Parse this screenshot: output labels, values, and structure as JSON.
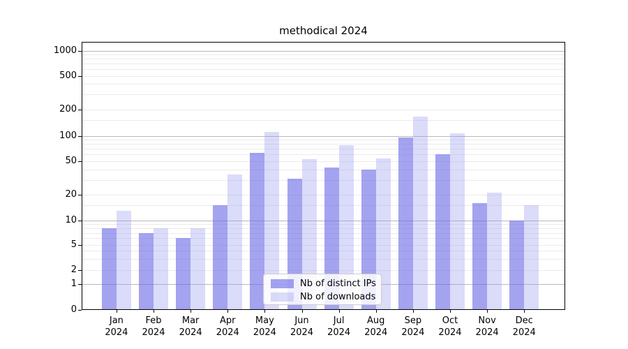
{
  "figure": {
    "title": "methodical 2024"
  },
  "legend": {
    "items": [
      {
        "label": "Nb of distinct IPs",
        "color": "rgba(102,102,230,0.6)"
      },
      {
        "label": "Nb of downloads",
        "color": "rgba(153,153,240,0.35)"
      }
    ]
  },
  "chart_data": {
    "type": "bar",
    "title": "methodical 2024",
    "categories": [
      "Jan 2024",
      "Feb 2024",
      "Mar 2024",
      "Apr 2024",
      "May 2024",
      "Jun 2024",
      "Jul 2024",
      "Aug 2024",
      "Sep 2024",
      "Oct 2024",
      "Nov 2024",
      "Dec 2024"
    ],
    "series": [
      {
        "name": "Nb of distinct IPs",
        "color": "rgba(102,102,230,0.6)",
        "values": [
          8,
          7,
          6,
          15,
          63,
          31,
          42,
          40,
          95,
          60,
          16,
          10
        ]
      },
      {
        "name": "Nb of downloads",
        "color": "rgba(153,153,240,0.35)",
        "values": [
          13,
          8,
          8,
          35,
          110,
          53,
          78,
          54,
          165,
          107,
          21,
          15
        ]
      }
    ],
    "xlabel": "",
    "ylabel": "",
    "yscale": "symlog",
    "yticks": [
      0,
      1,
      2,
      5,
      10,
      20,
      50,
      100,
      200,
      500,
      1000
    ],
    "ylim": [
      0,
      1400
    ],
    "grid": true,
    "legend_position": "lower center",
    "colors": {
      "major_grid": "#b8b8b8",
      "minor_grid": "#ebebeb",
      "axis": "#000000"
    }
  }
}
